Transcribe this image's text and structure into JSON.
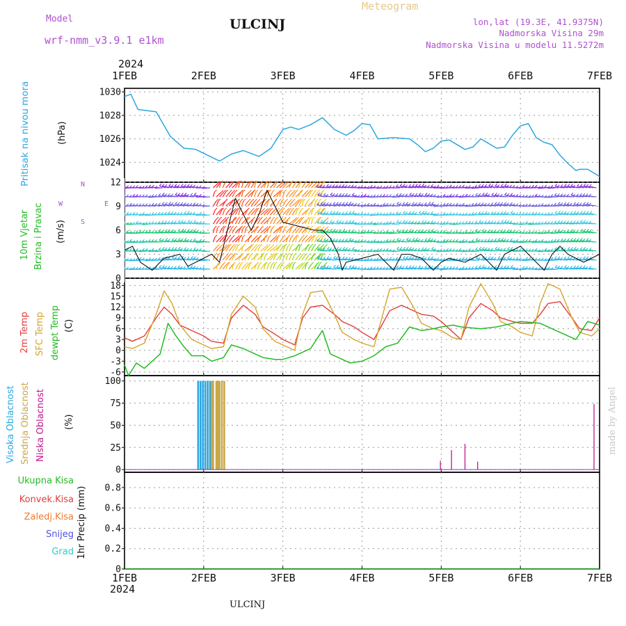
{
  "header": {
    "model_label": "Model",
    "model_name": "wrf-nmm_v3.9.1  e1km",
    "station": "ULCINJ",
    "meteogram": "Meteogram",
    "lonlat": "lon,lat (19.3E, 41.9375N)",
    "elevation": "Nadmorska Visina 29m",
    "model_elevation": "Nadmorska Visina u modelu 11.5272m",
    "footer_station": "ULCINJ",
    "credit": "made by Angel"
  },
  "time_axis": {
    "year": "2024",
    "labels": [
      "1FEB",
      "2FEB",
      "3FEB",
      "4FEB",
      "5FEB",
      "6FEB",
      "7FEB"
    ]
  },
  "colors": {
    "pressure": "#2aa7e0",
    "wind_label": "#22bb22",
    "temp2m": "#e33c3c",
    "sfc": "#d6a32a",
    "dewpt": "#22bb22",
    "high_cloud": "#2aa7e0",
    "mid_cloud": "#c8a84a",
    "low_cloud": "#c0188c",
    "compass": "#b050d0"
  },
  "panels": {
    "pressure": {
      "label": "Pritisak na nivou mora",
      "unit": "(hPa)"
    },
    "wind": {
      "label1": "10m Vjetar",
      "label2": "Brzina i Pravac",
      "unit": "(m/s)",
      "compass": [
        "N",
        "W",
        "E",
        "S"
      ]
    },
    "temp": {
      "labels": [
        "2m Temp",
        "SFC Temp",
        "dewpt Temp"
      ],
      "unit": "(C)"
    },
    "cloud": {
      "labels": [
        "Visoka Oblacnost",
        "Srednja Oblacnost",
        "Niska Oblacnost"
      ],
      "unit": "(%)"
    },
    "precip": {
      "labels": [
        "Ukupna Kisa",
        "Konvek.Kisa",
        "Zaledj.Kisa",
        "Snijeg",
        "Grad"
      ],
      "label_colors": [
        "#22bb22",
        "#e33c3c",
        "#f07a2a",
        "#5050e0",
        "#30c8c8"
      ],
      "unit": "1hr Precip (mm)"
    }
  },
  "chart_data": [
    {
      "type": "line",
      "name": "pressure",
      "ylabel": "(hPa)",
      "ylim": [
        1022.3,
        1030.3
      ],
      "yticks": [
        1024,
        1026,
        1028,
        1030
      ],
      "x_range_days": [
        0,
        6
      ],
      "series": [
        {
          "x": [
            0,
            0.08,
            0.17,
            0.4,
            0.58,
            0.75,
            0.9,
            1.05,
            1.2,
            1.35,
            1.5,
            1.7,
            1.85,
            2.0,
            2.1,
            2.2,
            2.35,
            2.5,
            2.65,
            2.8,
            2.9,
            3.0,
            3.1,
            3.2,
            3.4,
            3.6,
            3.7,
            3.8,
            3.9,
            4.0,
            4.1,
            4.3,
            4.4,
            4.5,
            4.6,
            4.7,
            4.8,
            4.9,
            5.0,
            5.1,
            5.2,
            5.3,
            5.4,
            5.5,
            5.6,
            5.7,
            5.75,
            5.85,
            6.0
          ],
          "values": [
            1029.6,
            1029.8,
            1028.5,
            1028.3,
            1026.2,
            1025.2,
            1025.1,
            1024.6,
            1024.1,
            1024.7,
            1025.0,
            1024.5,
            1025.2,
            1026.8,
            1027.0,
            1026.8,
            1027.2,
            1027.8,
            1026.8,
            1026.3,
            1026.7,
            1027.3,
            1027.2,
            1026.0,
            1026.1,
            1026.0,
            1025.5,
            1024.9,
            1025.2,
            1025.8,
            1025.9,
            1025.1,
            1025.3,
            1026.0,
            1025.6,
            1025.2,
            1025.3,
            1026.3,
            1027.1,
            1027.3,
            1026.1,
            1025.7,
            1025.5,
            1024.6,
            1023.9,
            1023.3,
            1023.4,
            1023.4,
            1022.8
          ]
        }
      ]
    },
    {
      "type": "line",
      "name": "wind",
      "ylabel": "(m/s)",
      "ylim": [
        0,
        12
      ],
      "yticks": [
        0,
        3,
        6,
        9,
        12
      ],
      "x_range_days": [
        0,
        6
      ],
      "series": [
        {
          "name": "speed",
          "x": [
            0,
            0.1,
            0.2,
            0.35,
            0.5,
            0.7,
            0.8,
            1.0,
            1.1,
            1.2,
            1.3,
            1.4,
            1.5,
            1.6,
            1.7,
            1.8,
            1.9,
            2.0,
            2.2,
            2.4,
            2.5,
            2.6,
            2.7,
            2.75,
            2.8,
            3.0,
            3.2,
            3.3,
            3.4,
            3.5,
            3.6,
            3.75,
            3.9,
            4.0,
            4.1,
            4.3,
            4.4,
            4.5,
            4.6,
            4.7,
            4.8,
            5.0,
            5.1,
            5.2,
            5.3,
            5.4,
            5.5,
            5.6,
            5.7,
            5.8,
            6.0
          ],
          "values": [
            3.5,
            4,
            2,
            1,
            2.5,
            3,
            1.5,
            2.5,
            3,
            2,
            6,
            10,
            8,
            6,
            8,
            11,
            9,
            7,
            6.5,
            6,
            6,
            5,
            3,
            1,
            2,
            2.5,
            3,
            2,
            1,
            3,
            3,
            2.5,
            1,
            2,
            2.5,
            2,
            2.5,
            3,
            2,
            1,
            3,
            4,
            3,
            2,
            1,
            3,
            4,
            3,
            2.5,
            2,
            3
          ]
        }
      ]
    },
    {
      "type": "line",
      "name": "temperature",
      "ylabel": "(C)",
      "ylim": [
        -7,
        20
      ],
      "yticks": [
        -6,
        -3,
        0,
        3,
        6,
        9,
        12,
        15,
        18
      ],
      "x_range_days": [
        0,
        6
      ],
      "series": [
        {
          "name": "2m Temp",
          "x": [
            0,
            0.1,
            0.25,
            0.4,
            0.5,
            0.6,
            0.7,
            0.85,
            1.0,
            1.1,
            1.25,
            1.35,
            1.5,
            1.65,
            1.75,
            1.9,
            2.0,
            2.15,
            2.25,
            2.35,
            2.5,
            2.65,
            2.75,
            2.9,
            3.0,
            3.15,
            3.25,
            3.35,
            3.5,
            3.65,
            3.75,
            3.9,
            4.0,
            4.15,
            4.25,
            4.35,
            4.5,
            4.65,
            4.75,
            4.9,
            5.0,
            5.15,
            5.25,
            5.35,
            5.5,
            5.65,
            5.75,
            5.9,
            6.0
          ],
          "values": [
            3.5,
            2.5,
            4,
            9,
            12,
            10,
            7,
            5.5,
            4,
            2.5,
            2,
            9,
            12.5,
            10,
            6.5,
            4.5,
            3,
            1.5,
            9,
            12,
            12.5,
            10,
            8,
            6.5,
            5,
            3,
            7,
            11,
            12.5,
            11,
            10,
            9.5,
            8,
            5,
            3,
            9,
            13,
            11,
            9,
            8,
            7.5,
            7.5,
            10,
            13,
            13.5,
            9,
            6,
            5.5,
            9
          ]
        },
        {
          "name": "SFC Temp",
          "x": [
            0,
            0.1,
            0.25,
            0.4,
            0.5,
            0.6,
            0.7,
            0.85,
            1.0,
            1.1,
            1.25,
            1.35,
            1.5,
            1.65,
            1.75,
            1.9,
            2.0,
            2.15,
            2.25,
            2.35,
            2.5,
            2.65,
            2.75,
            2.9,
            3.0,
            3.15,
            3.25,
            3.35,
            3.5,
            3.65,
            3.75,
            3.9,
            4.0,
            4.15,
            4.25,
            4.35,
            4.5,
            4.65,
            4.75,
            4.9,
            5.0,
            5.15,
            5.25,
            5.35,
            5.5,
            5.65,
            5.75,
            5.9,
            6.0
          ],
          "values": [
            1,
            0.5,
            2,
            10,
            16.5,
            13,
            7,
            3,
            1.5,
            0.5,
            1,
            10,
            15,
            12,
            6,
            2.5,
            1.5,
            0,
            10,
            16,
            16.5,
            10,
            5,
            3,
            2,
            1,
            9,
            17,
            17.5,
            12,
            7.5,
            6,
            5.5,
            3.5,
            3,
            12,
            18.5,
            13,
            8,
            6.5,
            5,
            4,
            13,
            18.5,
            17,
            9,
            5,
            4,
            6
          ]
        },
        {
          "name": "dewpt Temp",
          "x": [
            0,
            0.05,
            0.15,
            0.25,
            0.35,
            0.45,
            0.55,
            0.65,
            0.75,
            0.85,
            1.0,
            1.1,
            1.25,
            1.35,
            1.5,
            1.65,
            1.75,
            1.9,
            2.0,
            2.15,
            2.25,
            2.35,
            2.5,
            2.6,
            2.7,
            2.85,
            3.0,
            3.15,
            3.3,
            3.45,
            3.6,
            3.75,
            3.9,
            4.0,
            4.15,
            4.25,
            4.5,
            4.7,
            5.0,
            5.25,
            5.5,
            5.7,
            5.85,
            6.0
          ],
          "values": [
            -4,
            -7,
            -3.5,
            -5,
            -3,
            -1,
            7.5,
            4,
            1,
            -1.5,
            -1.5,
            -3,
            -2,
            1.5,
            0.5,
            -1,
            -2,
            -2.5,
            -2.5,
            -1.5,
            -0.5,
            0.5,
            5.5,
            -1,
            -2,
            -3.5,
            -3,
            -1.5,
            1,
            2,
            6.5,
            5.5,
            6,
            6.5,
            7,
            6.5,
            6,
            6.5,
            8,
            7.5,
            5,
            3,
            8,
            7
          ]
        }
      ]
    },
    {
      "type": "bar",
      "name": "cloud cover",
      "ylabel": "(%)",
      "ylim": [
        -3,
        106
      ],
      "yticks": [
        0,
        25,
        50,
        75,
        100
      ],
      "x_range_days": [
        0,
        6
      ],
      "series": [
        {
          "name": "Visoka Oblacnost",
          "x": [
            0.93,
            0.96,
            0.99,
            1.02,
            1.05,
            1.08
          ],
          "values": [
            100,
            100,
            100,
            100,
            100,
            100
          ]
        },
        {
          "name": "Srednja Oblacnost",
          "x": [
            1.1,
            1.12,
            1.16,
            1.18,
            1.2,
            1.23,
            1.26
          ],
          "values": [
            100,
            100,
            100,
            100,
            100,
            100,
            100
          ]
        },
        {
          "name": "Niska Oblacnost",
          "x": [
            3.99,
            4.13,
            4.3,
            4.46,
            5.93
          ],
          "values": [
            10,
            22,
            29,
            9,
            74
          ]
        }
      ]
    },
    {
      "type": "line",
      "name": "precipitation",
      "ylabel": "1hr Precip (mm)",
      "ylim": [
        0,
        0.95
      ],
      "yticks": [
        0,
        0.2,
        0.4,
        0.6,
        0.8
      ],
      "x_range_days": [
        0,
        6
      ],
      "series": [
        {
          "name": "Ukupna Kisa",
          "x": [
            0,
            6
          ],
          "values": [
            0,
            0
          ]
        }
      ]
    }
  ]
}
